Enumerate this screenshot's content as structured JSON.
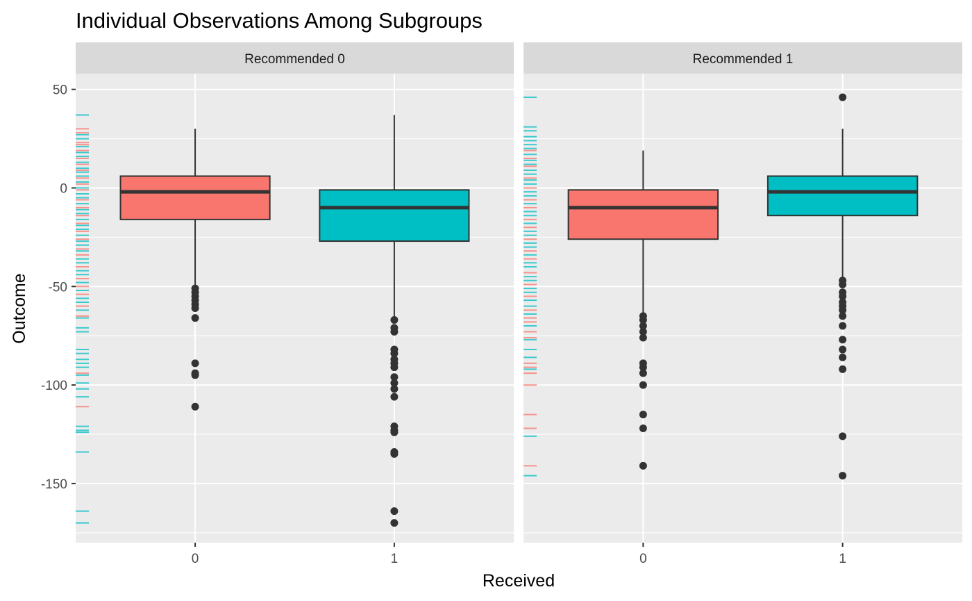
{
  "chart_data": {
    "type": "boxplot",
    "title": "Individual Observations Among Subgroups",
    "xlabel": "Received",
    "ylabel": "Outcome",
    "ylim": [
      -180,
      58
    ],
    "y_ticks": [
      50,
      0,
      -50,
      -100,
      -150
    ],
    "y_tick_labels": [
      "50",
      "0",
      "-50",
      "-100",
      "-150"
    ],
    "x_categories": [
      "0",
      "1"
    ],
    "grid": true,
    "legend": "none",
    "fill_colors": {
      "0": "#F8766D",
      "1": "#00BFC4"
    },
    "colors": {
      "panel_bg": "#EBEBEB",
      "strip_bg": "#D9D9D9",
      "grid": "#FFFFFF",
      "outline": "#333333"
    },
    "panels": [
      {
        "strip_label": "Recommended 0",
        "boxes": [
          {
            "received": "0",
            "whisker_low": -50,
            "q1": -16,
            "median": -2,
            "q3": 6,
            "whisker_high": 30,
            "outliers": [
              -51,
              -53,
              -55,
              -57,
              -59,
              -61,
              -66,
              -89,
              -94,
              -95,
              -111
            ]
          },
          {
            "received": "1",
            "whisker_low": -66,
            "q1": -27,
            "median": -10,
            "q3": -1,
            "whisker_high": 37,
            "outliers": [
              -67,
              -71,
              -73,
              -82,
              -84,
              -87,
              -89,
              -91,
              -96,
              -99,
              -102,
              -106,
              -121,
              -123,
              -124,
              -134,
              -135,
              -164,
              -170
            ]
          }
        ],
        "rug": [
          {
            "y": 37,
            "g": "1"
          },
          {
            "y": 30,
            "g": "0"
          },
          {
            "y": 28,
            "g": "0"
          },
          {
            "y": 27,
            "g": "1"
          },
          {
            "y": 25,
            "g": "1"
          },
          {
            "y": 23,
            "g": "0"
          },
          {
            "y": 22,
            "g": "0"
          },
          {
            "y": 21,
            "g": "1"
          },
          {
            "y": 19,
            "g": "0"
          },
          {
            "y": 18,
            "g": "1"
          },
          {
            "y": 16,
            "g": "1"
          },
          {
            "y": 15,
            "g": "0"
          },
          {
            "y": 13,
            "g": "1"
          },
          {
            "y": 12,
            "g": "0"
          },
          {
            "y": 10,
            "g": "1"
          },
          {
            "y": 9,
            "g": "0"
          },
          {
            "y": 8,
            "g": "1"
          },
          {
            "y": 6,
            "g": "1"
          },
          {
            "y": 5,
            "g": "0"
          },
          {
            "y": 3,
            "g": "1"
          },
          {
            "y": 2,
            "g": "0"
          },
          {
            "y": 0,
            "g": "1"
          },
          {
            "y": -1,
            "g": "0"
          },
          {
            "y": -3,
            "g": "1"
          },
          {
            "y": -5,
            "g": "1"
          },
          {
            "y": -6,
            "g": "0"
          },
          {
            "y": -8,
            "g": "1"
          },
          {
            "y": -10,
            "g": "0"
          },
          {
            "y": -11,
            "g": "1"
          },
          {
            "y": -13,
            "g": "1"
          },
          {
            "y": -14,
            "g": "0"
          },
          {
            "y": -16,
            "g": "1"
          },
          {
            "y": -18,
            "g": "0"
          },
          {
            "y": -19,
            "g": "1"
          },
          {
            "y": -21,
            "g": "1"
          },
          {
            "y": -22,
            "g": "0"
          },
          {
            "y": -24,
            "g": "1"
          },
          {
            "y": -26,
            "g": "0"
          },
          {
            "y": -27,
            "g": "1"
          },
          {
            "y": -29,
            "g": "1"
          },
          {
            "y": -31,
            "g": "0"
          },
          {
            "y": -32,
            "g": "1"
          },
          {
            "y": -34,
            "g": "0"
          },
          {
            "y": -36,
            "g": "1"
          },
          {
            "y": -38,
            "g": "1"
          },
          {
            "y": -40,
            "g": "0"
          },
          {
            "y": -42,
            "g": "1"
          },
          {
            "y": -44,
            "g": "1"
          },
          {
            "y": -46,
            "g": "0"
          },
          {
            "y": -48,
            "g": "1"
          },
          {
            "y": -50,
            "g": "0"
          },
          {
            "y": -52,
            "g": "1"
          },
          {
            "y": -54,
            "g": "0"
          },
          {
            "y": -56,
            "g": "1"
          },
          {
            "y": -58,
            "g": "1"
          },
          {
            "y": -60,
            "g": "0"
          },
          {
            "y": -62,
            "g": "1"
          },
          {
            "y": -65,
            "g": "0"
          },
          {
            "y": -66,
            "g": "1"
          },
          {
            "y": -71,
            "g": "1"
          },
          {
            "y": -73,
            "g": "1"
          },
          {
            "y": -82,
            "g": "1"
          },
          {
            "y": -84,
            "g": "1"
          },
          {
            "y": -87,
            "g": "1"
          },
          {
            "y": -89,
            "g": "1"
          },
          {
            "y": -91,
            "g": "1"
          },
          {
            "y": -94,
            "g": "0"
          },
          {
            "y": -95,
            "g": "1"
          },
          {
            "y": -99,
            "g": "1"
          },
          {
            "y": -102,
            "g": "1"
          },
          {
            "y": -106,
            "g": "1"
          },
          {
            "y": -111,
            "g": "0"
          },
          {
            "y": -121,
            "g": "1"
          },
          {
            "y": -123,
            "g": "1"
          },
          {
            "y": -124,
            "g": "1"
          },
          {
            "y": -134,
            "g": "1"
          },
          {
            "y": -164,
            "g": "1"
          },
          {
            "y": -170,
            "g": "1"
          }
        ]
      },
      {
        "strip_label": "Recommended 1",
        "boxes": [
          {
            "received": "0",
            "whisker_low": -64,
            "q1": -26,
            "median": -10,
            "q3": -1,
            "whisker_high": 19,
            "outliers": [
              -65,
              -67,
              -70,
              -73,
              -76,
              -89,
              -91,
              -94,
              -100,
              -115,
              -122,
              -141
            ]
          },
          {
            "received": "1",
            "whisker_low": -46,
            "q1": -14,
            "median": -2,
            "q3": 6,
            "whisker_high": 30,
            "outliers": [
              46,
              -47,
              -49,
              -53,
              -55,
              -58,
              -60,
              -62,
              -65,
              -70,
              -77,
              -82,
              -86,
              -92,
              -126,
              -146
            ]
          }
        ],
        "rug": [
          {
            "y": 46,
            "g": "1"
          },
          {
            "y": 31,
            "g": "1"
          },
          {
            "y": 29,
            "g": "1"
          },
          {
            "y": 26,
            "g": "1"
          },
          {
            "y": 24,
            "g": "1"
          },
          {
            "y": 22,
            "g": "1"
          },
          {
            "y": 20,
            "g": "1"
          },
          {
            "y": 19,
            "g": "0"
          },
          {
            "y": 17,
            "g": "1"
          },
          {
            "y": 15,
            "g": "0"
          },
          {
            "y": 14,
            "g": "1"
          },
          {
            "y": 12,
            "g": "1"
          },
          {
            "y": 11,
            "g": "0"
          },
          {
            "y": 9,
            "g": "1"
          },
          {
            "y": 7,
            "g": "1"
          },
          {
            "y": 5,
            "g": "0"
          },
          {
            "y": 4,
            "g": "1"
          },
          {
            "y": 2,
            "g": "1"
          },
          {
            "y": 0,
            "g": "0"
          },
          {
            "y": -2,
            "g": "1"
          },
          {
            "y": -4,
            "g": "1"
          },
          {
            "y": -6,
            "g": "0"
          },
          {
            "y": -8,
            "g": "1"
          },
          {
            "y": -10,
            "g": "0"
          },
          {
            "y": -12,
            "g": "1"
          },
          {
            "y": -14,
            "g": "1"
          },
          {
            "y": -16,
            "g": "0"
          },
          {
            "y": -18,
            "g": "1"
          },
          {
            "y": -20,
            "g": "0"
          },
          {
            "y": -22,
            "g": "1"
          },
          {
            "y": -24,
            "g": "1"
          },
          {
            "y": -26,
            "g": "0"
          },
          {
            "y": -28,
            "g": "1"
          },
          {
            "y": -30,
            "g": "1"
          },
          {
            "y": -32,
            "g": "0"
          },
          {
            "y": -34,
            "g": "1"
          },
          {
            "y": -36,
            "g": "0"
          },
          {
            "y": -38,
            "g": "1"
          },
          {
            "y": -40,
            "g": "1"
          },
          {
            "y": -43,
            "g": "0"
          },
          {
            "y": -45,
            "g": "1"
          },
          {
            "y": -47,
            "g": "1"
          },
          {
            "y": -49,
            "g": "0"
          },
          {
            "y": -51,
            "g": "1"
          },
          {
            "y": -53,
            "g": "1"
          },
          {
            "y": -55,
            "g": "0"
          },
          {
            "y": -57,
            "g": "1"
          },
          {
            "y": -60,
            "g": "1"
          },
          {
            "y": -62,
            "g": "0"
          },
          {
            "y": -64,
            "g": "1"
          },
          {
            "y": -66,
            "g": "0"
          },
          {
            "y": -68,
            "g": "0"
          },
          {
            "y": -70,
            "g": "1"
          },
          {
            "y": -73,
            "g": "0"
          },
          {
            "y": -76,
            "g": "0"
          },
          {
            "y": -77,
            "g": "1"
          },
          {
            "y": -82,
            "g": "1"
          },
          {
            "y": -86,
            "g": "1"
          },
          {
            "y": -89,
            "g": "0"
          },
          {
            "y": -91,
            "g": "0"
          },
          {
            "y": -92,
            "g": "1"
          },
          {
            "y": -94,
            "g": "0"
          },
          {
            "y": -100,
            "g": "0"
          },
          {
            "y": -115,
            "g": "0"
          },
          {
            "y": -122,
            "g": "0"
          },
          {
            "y": -126,
            "g": "1"
          },
          {
            "y": -141,
            "g": "0"
          },
          {
            "y": -146,
            "g": "1"
          }
        ]
      }
    ]
  }
}
